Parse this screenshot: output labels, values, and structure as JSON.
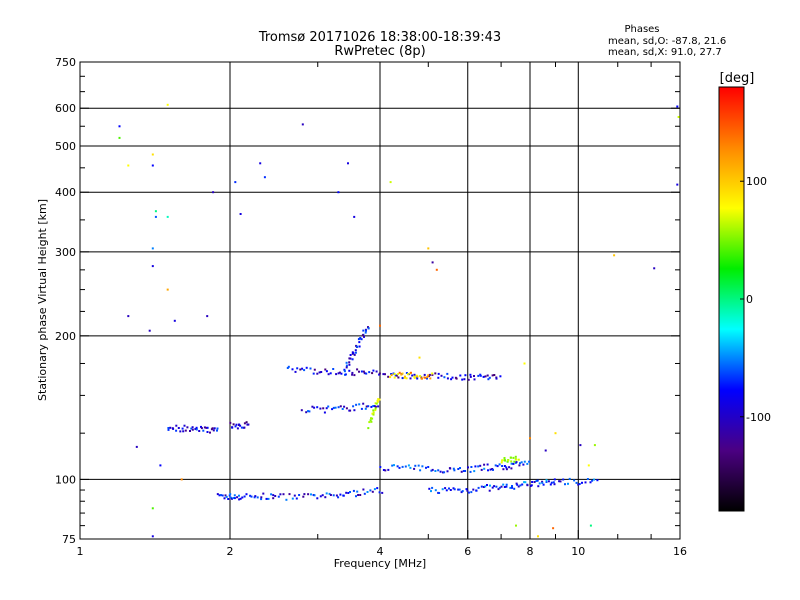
{
  "chart_data": {
    "type": "scatter",
    "title": "Tromsø 20171026 18:38:00-18:39:43",
    "subtitle": "RwPretec (8p)",
    "xlabel": "Frequency [MHz]",
    "ylabel": "Stationary phase Virtual Height [km]",
    "x_scale": "log",
    "y_scale": "log",
    "xlim": [
      1,
      16
    ],
    "ylim": [
      75,
      750
    ],
    "x_ticks": [
      "1",
      "2",
      "4",
      "6",
      "8",
      "10",
      "16"
    ],
    "x_tick_values": [
      1,
      2,
      4,
      6,
      8,
      10,
      16
    ],
    "y_ticks": [
      "75",
      "100",
      "200",
      "300",
      "400",
      "500",
      "600",
      "750"
    ],
    "y_tick_values": [
      75,
      100,
      200,
      300,
      400,
      500,
      600,
      750
    ],
    "grid": true,
    "stats": {
      "heading": "Phases",
      "line_o": "mean, sd,O: -87.8, 21.6",
      "line_x": "mean, sd,X:  91.0, 27.7"
    },
    "colorbar": {
      "label": "[deg]",
      "ticks": [
        "100",
        "0",
        "-100"
      ],
      "tick_values": [
        100,
        0,
        -100
      ],
      "range": [
        -180,
        180
      ],
      "colors": [
        "#ff0000",
        "#ff8800",
        "#ffff00",
        "#00ee00",
        "#00ffff",
        "#0000ff",
        "#4b0082",
        "#000000"
      ]
    },
    "traces": [
      {
        "x": [
          1.9,
          2.0,
          2.1,
          2.3,
          2.5,
          2.8,
          3.1,
          3.4,
          3.7,
          4.1
        ],
        "y": [
          92,
          92,
          92,
          92,
          92,
          92,
          92,
          93,
          94,
          95
        ],
        "phase": -100
      },
      {
        "x": [
          4.0,
          4.5,
          5.0,
          5.5,
          6.0,
          6.5,
          7.0,
          7.5,
          8.0
        ],
        "y": [
          106,
          106,
          105,
          105,
          105,
          106,
          106,
          107,
          108
        ],
        "phase": -95
      },
      {
        "x": [
          5.0,
          5.5,
          6.0,
          6.5,
          7.0,
          7.5,
          8.0,
          8.5,
          9.0,
          10.0,
          11.0
        ],
        "y": [
          95,
          95,
          95,
          96,
          96,
          97,
          98,
          98,
          99,
          99,
          100
        ],
        "phase": -90
      },
      {
        "x": [
          2.6,
          2.9,
          3.2,
          3.5,
          3.8,
          4.2,
          4.6,
          5.0,
          5.5,
          6.0,
          6.5,
          7.0
        ],
        "y": [
          170,
          169,
          168,
          168,
          167,
          166,
          165,
          165,
          164,
          164,
          164,
          164
        ],
        "phase": -110
      },
      {
        "x": [
          2.8,
          3.1,
          3.4,
          3.7,
          4.0
        ],
        "y": [
          140,
          140,
          141,
          142,
          143
        ],
        "phase": -105
      },
      {
        "x": [
          1.5,
          1.6,
          1.7,
          1.8,
          1.9
        ],
        "y": [
          128,
          128,
          127,
          127,
          128
        ],
        "phase": -110
      },
      {
        "x": [
          2.0,
          2.1,
          2.2
        ],
        "y": [
          130,
          129,
          131
        ],
        "phase": -115
      },
      {
        "x": [
          3.4,
          3.5,
          3.6,
          3.7,
          3.8
        ],
        "y": [
          170,
          180,
          190,
          200,
          210
        ],
        "phase": -110
      },
      {
        "x": [
          3.8,
          3.9,
          4.0
        ],
        "y": [
          130,
          140,
          150
        ],
        "phase": 80
      },
      {
        "x": [
          4.2,
          4.5,
          4.8,
          5.1
        ],
        "y": [
          165,
          165,
          165,
          165
        ],
        "phase": 120
      },
      {
        "x": [
          7.0,
          7.3,
          7.6
        ],
        "y": [
          109,
          110,
          110
        ],
        "phase": 60
      }
    ],
    "isolated_points": [
      {
        "x": 1.2,
        "y": 550,
        "phase": -100
      },
      {
        "x": 1.2,
        "y": 520,
        "phase": 30
      },
      {
        "x": 1.25,
        "y": 455,
        "phase": 100
      },
      {
        "x": 1.4,
        "y": 480,
        "phase": 110
      },
      {
        "x": 1.4,
        "y": 455,
        "phase": -100
      },
      {
        "x": 1.42,
        "y": 365,
        "phase": -20
      },
      {
        "x": 1.42,
        "y": 355,
        "phase": -80
      },
      {
        "x": 1.5,
        "y": 610,
        "phase": 100
      },
      {
        "x": 1.5,
        "y": 355,
        "phase": -30
      },
      {
        "x": 1.5,
        "y": 250,
        "phase": 130
      },
      {
        "x": 1.4,
        "y": 305,
        "phase": -70
      },
      {
        "x": 1.4,
        "y": 280,
        "phase": -110
      },
      {
        "x": 1.25,
        "y": 220,
        "phase": -120
      },
      {
        "x": 1.38,
        "y": 205,
        "phase": -120
      },
      {
        "x": 1.55,
        "y": 215,
        "phase": -110
      },
      {
        "x": 1.8,
        "y": 220,
        "phase": -120
      },
      {
        "x": 1.85,
        "y": 400,
        "phase": -120
      },
      {
        "x": 2.05,
        "y": 420,
        "phase": -90
      },
      {
        "x": 2.1,
        "y": 360,
        "phase": -110
      },
      {
        "x": 2.3,
        "y": 460,
        "phase": -110
      },
      {
        "x": 2.35,
        "y": 430,
        "phase": -90
      },
      {
        "x": 2.8,
        "y": 555,
        "phase": -120
      },
      {
        "x": 3.3,
        "y": 400,
        "phase": -100
      },
      {
        "x": 3.45,
        "y": 460,
        "phase": -110
      },
      {
        "x": 3.55,
        "y": 355,
        "phase": -110
      },
      {
        "x": 4.2,
        "y": 420,
        "phase": 80
      },
      {
        "x": 5.0,
        "y": 305,
        "phase": 120
      },
      {
        "x": 5.1,
        "y": 285,
        "phase": -130
      },
      {
        "x": 5.2,
        "y": 275,
        "phase": 150
      },
      {
        "x": 11.8,
        "y": 295,
        "phase": 120
      },
      {
        "x": 14.2,
        "y": 277,
        "phase": -120
      },
      {
        "x": 15.8,
        "y": 605,
        "phase": -100
      },
      {
        "x": 15.9,
        "y": 575,
        "phase": 80
      },
      {
        "x": 15.8,
        "y": 415,
        "phase": -110
      },
      {
        "x": 1.3,
        "y": 117,
        "phase": -120
      },
      {
        "x": 1.45,
        "y": 107,
        "phase": -100
      },
      {
        "x": 1.6,
        "y": 100,
        "phase": 140
      },
      {
        "x": 1.4,
        "y": 87,
        "phase": 30
      },
      {
        "x": 1.4,
        "y": 76,
        "phase": -110
      },
      {
        "x": 8.0,
        "y": 122,
        "phase": 140
      },
      {
        "x": 8.6,
        "y": 115,
        "phase": -120
      },
      {
        "x": 9.0,
        "y": 125,
        "phase": 110
      },
      {
        "x": 10.1,
        "y": 118,
        "phase": -120
      },
      {
        "x": 10.8,
        "y": 118,
        "phase": 60
      },
      {
        "x": 10.5,
        "y": 107,
        "phase": 100
      },
      {
        "x": 10.6,
        "y": 80,
        "phase": -20
      },
      {
        "x": 7.5,
        "y": 80,
        "phase": 60
      },
      {
        "x": 8.9,
        "y": 79,
        "phase": 150
      },
      {
        "x": 8.3,
        "y": 76,
        "phase": 110
      },
      {
        "x": 7.8,
        "y": 175,
        "phase": 100
      },
      {
        "x": 4.8,
        "y": 180,
        "phase": 110
      },
      {
        "x": 4.0,
        "y": 210,
        "phase": 150
      }
    ]
  }
}
